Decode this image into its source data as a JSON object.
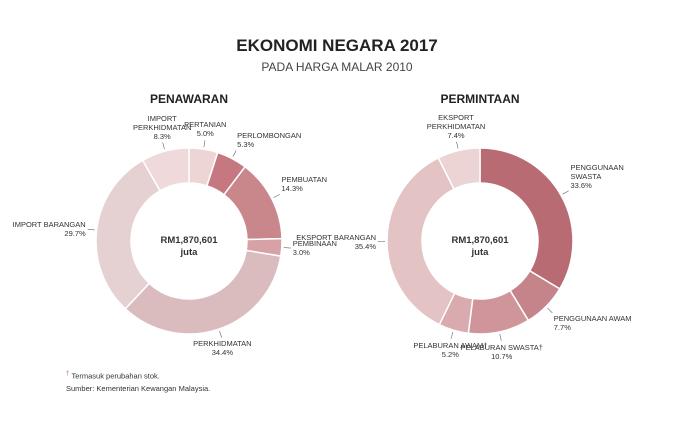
{
  "header": {
    "title": "EKONOMI NEGARA 2017",
    "subtitle": "PADA HARGA MALAR 2010"
  },
  "notes": [
    "Termasuk perubahan stok.",
    "Sumber: Kementerian Kewangan Malaysia."
  ],
  "chart_data": [
    {
      "type": "pie",
      "title": "PENAWARAN",
      "center_value": "RM1,870,601",
      "center_unit": "juta",
      "categories": [
        "PERTANIAN",
        "PERLOMBONGAN",
        "PEMBUATAN",
        "PEMBINAAN",
        "PERKHIDMATAN",
        "IMPORT BARANGAN",
        "IMPORT PERKHIDMATAN"
      ],
      "values": [
        5.0,
        5.3,
        14.3,
        3.0,
        34.4,
        29.7,
        8.3
      ],
      "value_labels": [
        "5.0%",
        "5.3%",
        "14.3%",
        "3.0%",
        "34.4%",
        "29.7%",
        "8.3%"
      ],
      "colors": [
        "#ecd5d4",
        "#c57880",
        "#c9868b",
        "#d6a2a5",
        "#dbbcbe",
        "#e6d1d2",
        "#efd9da"
      ]
    },
    {
      "type": "pie",
      "title": "PERMINTAAN",
      "center_value": "RM1,870,601",
      "center_unit": "juta",
      "categories": [
        "PENGGUNAAN SWASTA",
        "PENGGUNAAN AWAM",
        "PELABURAN SWASTA†",
        "PELABURAN AWAM†",
        "EKSPORT BARANGAN",
        "EKSPORT PERKHIDMATAN"
      ],
      "values": [
        33.6,
        7.7,
        10.7,
        5.2,
        35.4,
        7.4
      ],
      "value_labels": [
        "33.6%",
        "7.7%",
        "10.7%",
        "5.2%",
        "35.4%",
        "7.4%"
      ],
      "colors": [
        "#b96b74",
        "#c4848a",
        "#cf959a",
        "#d9abae",
        "#e4c3c5",
        "#ecd4d5"
      ]
    }
  ]
}
